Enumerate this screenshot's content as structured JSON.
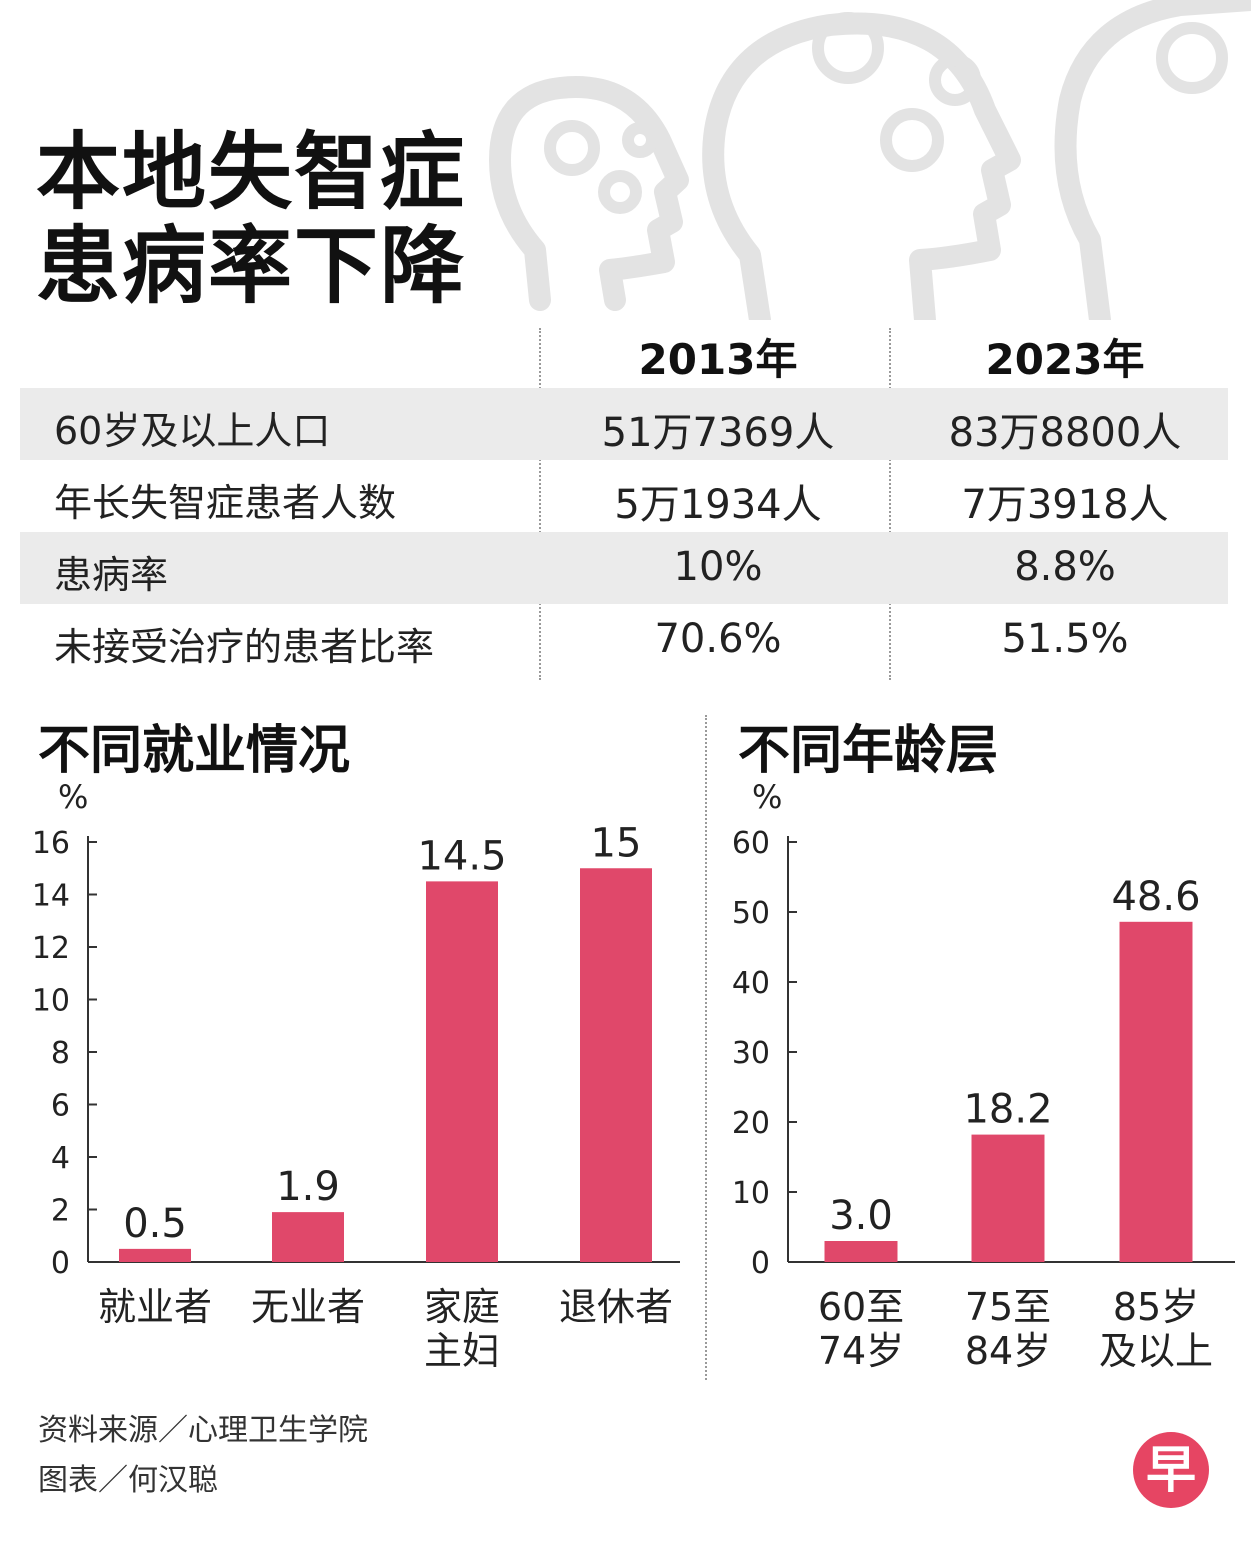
{
  "title": {
    "line1": "本地失智症",
    "line2": "患病率下降"
  },
  "colors": {
    "bar": "#e0486a",
    "shade": "#ebebeb",
    "text": "#222222",
    "logo": "#e64563"
  },
  "table": {
    "years": [
      "2013年",
      "2023年"
    ],
    "rows": [
      {
        "label": "60岁及以上人口",
        "v2013": "51万7369人",
        "v2023": "83万8800人"
      },
      {
        "label": "年长失智症患者人数",
        "v2013": "5万1934人",
        "v2023": "7万3918人"
      },
      {
        "label": "患病率",
        "v2013": "10%",
        "v2023": "8.8%"
      },
      {
        "label": "未接受治疗的患者比率",
        "v2013": "70.6%",
        "v2023": "51.5%"
      }
    ]
  },
  "chart_data": [
    {
      "type": "bar",
      "title": "不同就业情况",
      "ylabel": "%",
      "categories": [
        [
          "就业者"
        ],
        [
          "无业者"
        ],
        [
          "家庭",
          "主妇"
        ],
        [
          "退休者"
        ]
      ],
      "values": [
        0.5,
        1.9,
        14.5,
        15
      ],
      "value_labels": [
        "0.5",
        "1.9",
        "14.5",
        "15"
      ],
      "ylim": [
        0,
        16
      ],
      "yticks": [
        0,
        2,
        4,
        6,
        8,
        10,
        12,
        14,
        16
      ],
      "grid": false
    },
    {
      "type": "bar",
      "title": "不同年龄层",
      "ylabel": "%",
      "categories": [
        [
          "60至",
          "74岁"
        ],
        [
          "75至",
          "84岁"
        ],
        [
          "85岁",
          "及以上"
        ]
      ],
      "values": [
        3.0,
        18.2,
        48.6
      ],
      "value_labels": [
        "3.0",
        "18.2",
        "48.6"
      ],
      "ylim": [
        0,
        60
      ],
      "yticks": [
        0,
        10,
        20,
        30,
        40,
        50,
        60
      ],
      "grid": false
    }
  ],
  "footer": {
    "source": "资料来源／心理卫生学院",
    "credit": "图表／何汉聪",
    "logo": "早"
  }
}
